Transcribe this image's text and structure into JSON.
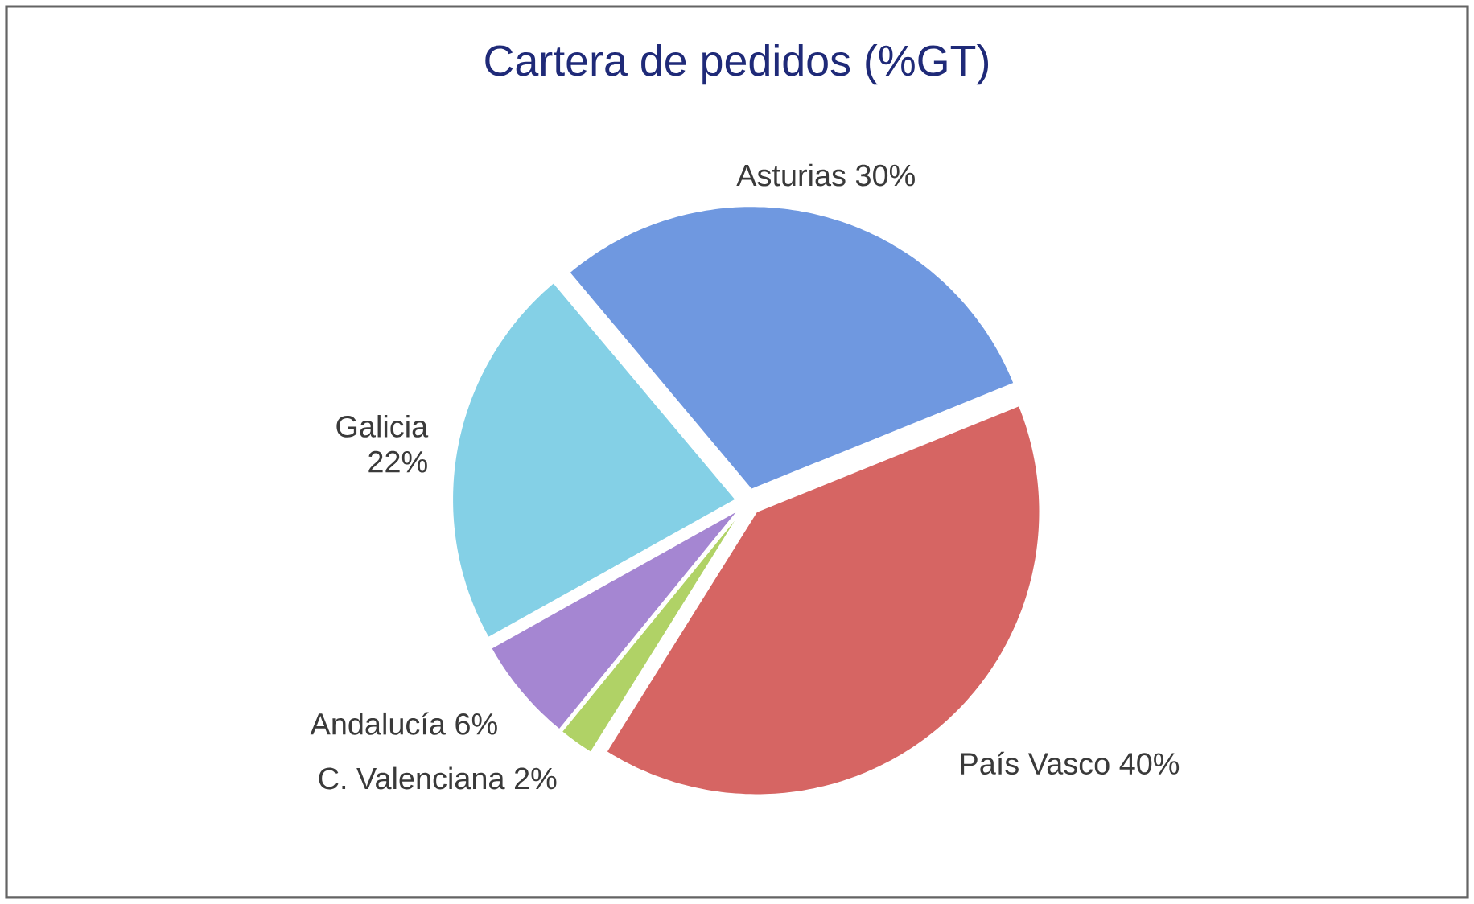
{
  "chart_data": {
    "type": "pie",
    "title": "Cartera de pedidos (%GT)",
    "categories": [
      "Asturias",
      "País Vasco",
      "C. Valenciana",
      "Andalucía",
      "Galicia"
    ],
    "values": [
      30,
      40,
      2,
      6,
      22
    ],
    "value_labels": [
      "30%",
      "40%",
      "2%",
      "6%",
      "22%"
    ],
    "colors": [
      "#6f98e0",
      "#d66563",
      "#b0d266",
      "#a586d2",
      "#84d0e6"
    ]
  }
}
